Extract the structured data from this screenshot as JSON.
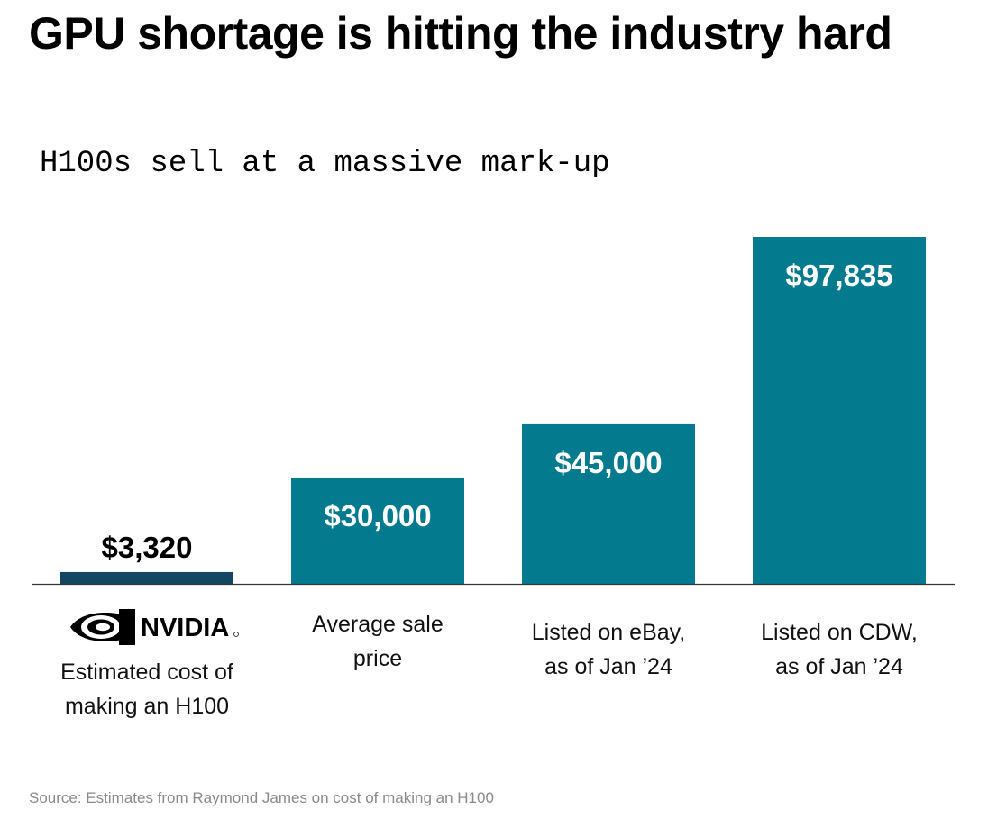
{
  "title": "GPU shortage is hitting the industry hard",
  "subtitle": "H100s sell at a massive mark-up",
  "logo": {
    "icon": "nvidia-logo-icon",
    "text": "NVIDIA"
  },
  "source": "Source: Estimates from Raymond James on cost of making an H100",
  "colors": {
    "bar_primary": "#037a8e",
    "bar_cost": "#124662",
    "label_inside": "#ffffff",
    "label_outside": "#000000",
    "baseline": "#333333"
  },
  "chart_data": {
    "type": "bar",
    "categories": [
      "Estimated cost of\nmaking an H100",
      "Average sale\nprice",
      "Listed on eBay,\nas of Jan ’24",
      "Listed on CDW,\nas of Jan ’24"
    ],
    "values": [
      3320,
      30000,
      45000,
      97835
    ],
    "data_labels": [
      "$3,320",
      "$30,000",
      "$45,000",
      "$97,835"
    ],
    "ylim": [
      0,
      100000
    ],
    "grid": false,
    "legend": "none"
  }
}
